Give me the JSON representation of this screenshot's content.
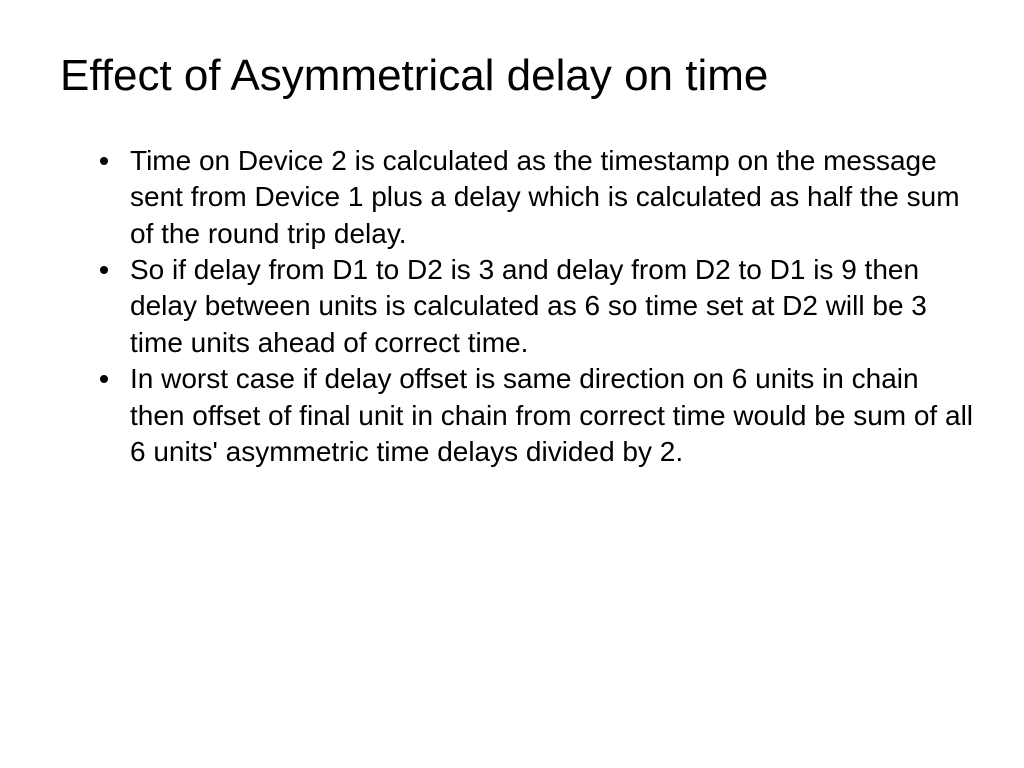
{
  "slide": {
    "title": "Effect of Asymmetrical delay on time",
    "bullets": [
      "Time on Device 2 is calculated as the timestamp on the message sent from Device 1 plus a delay which is calculated as half the sum of the round trip delay.",
      "So if delay from D1 to D2 is 3 and delay from D2 to D1 is 9 then delay between units is calculated as 6 so time set at D2 will be 3 time units ahead of correct time.",
      "In worst case if delay offset is same direction on 6 units in chain then offset of final unit in chain from correct time would be sum of all 6 units' asymmetric time delays divided by 2."
    ],
    "title_fontsize": 44,
    "body_fontsize": 28,
    "background_color": "#ffffff",
    "text_color": "#000000",
    "bullet_color": "#000000"
  }
}
